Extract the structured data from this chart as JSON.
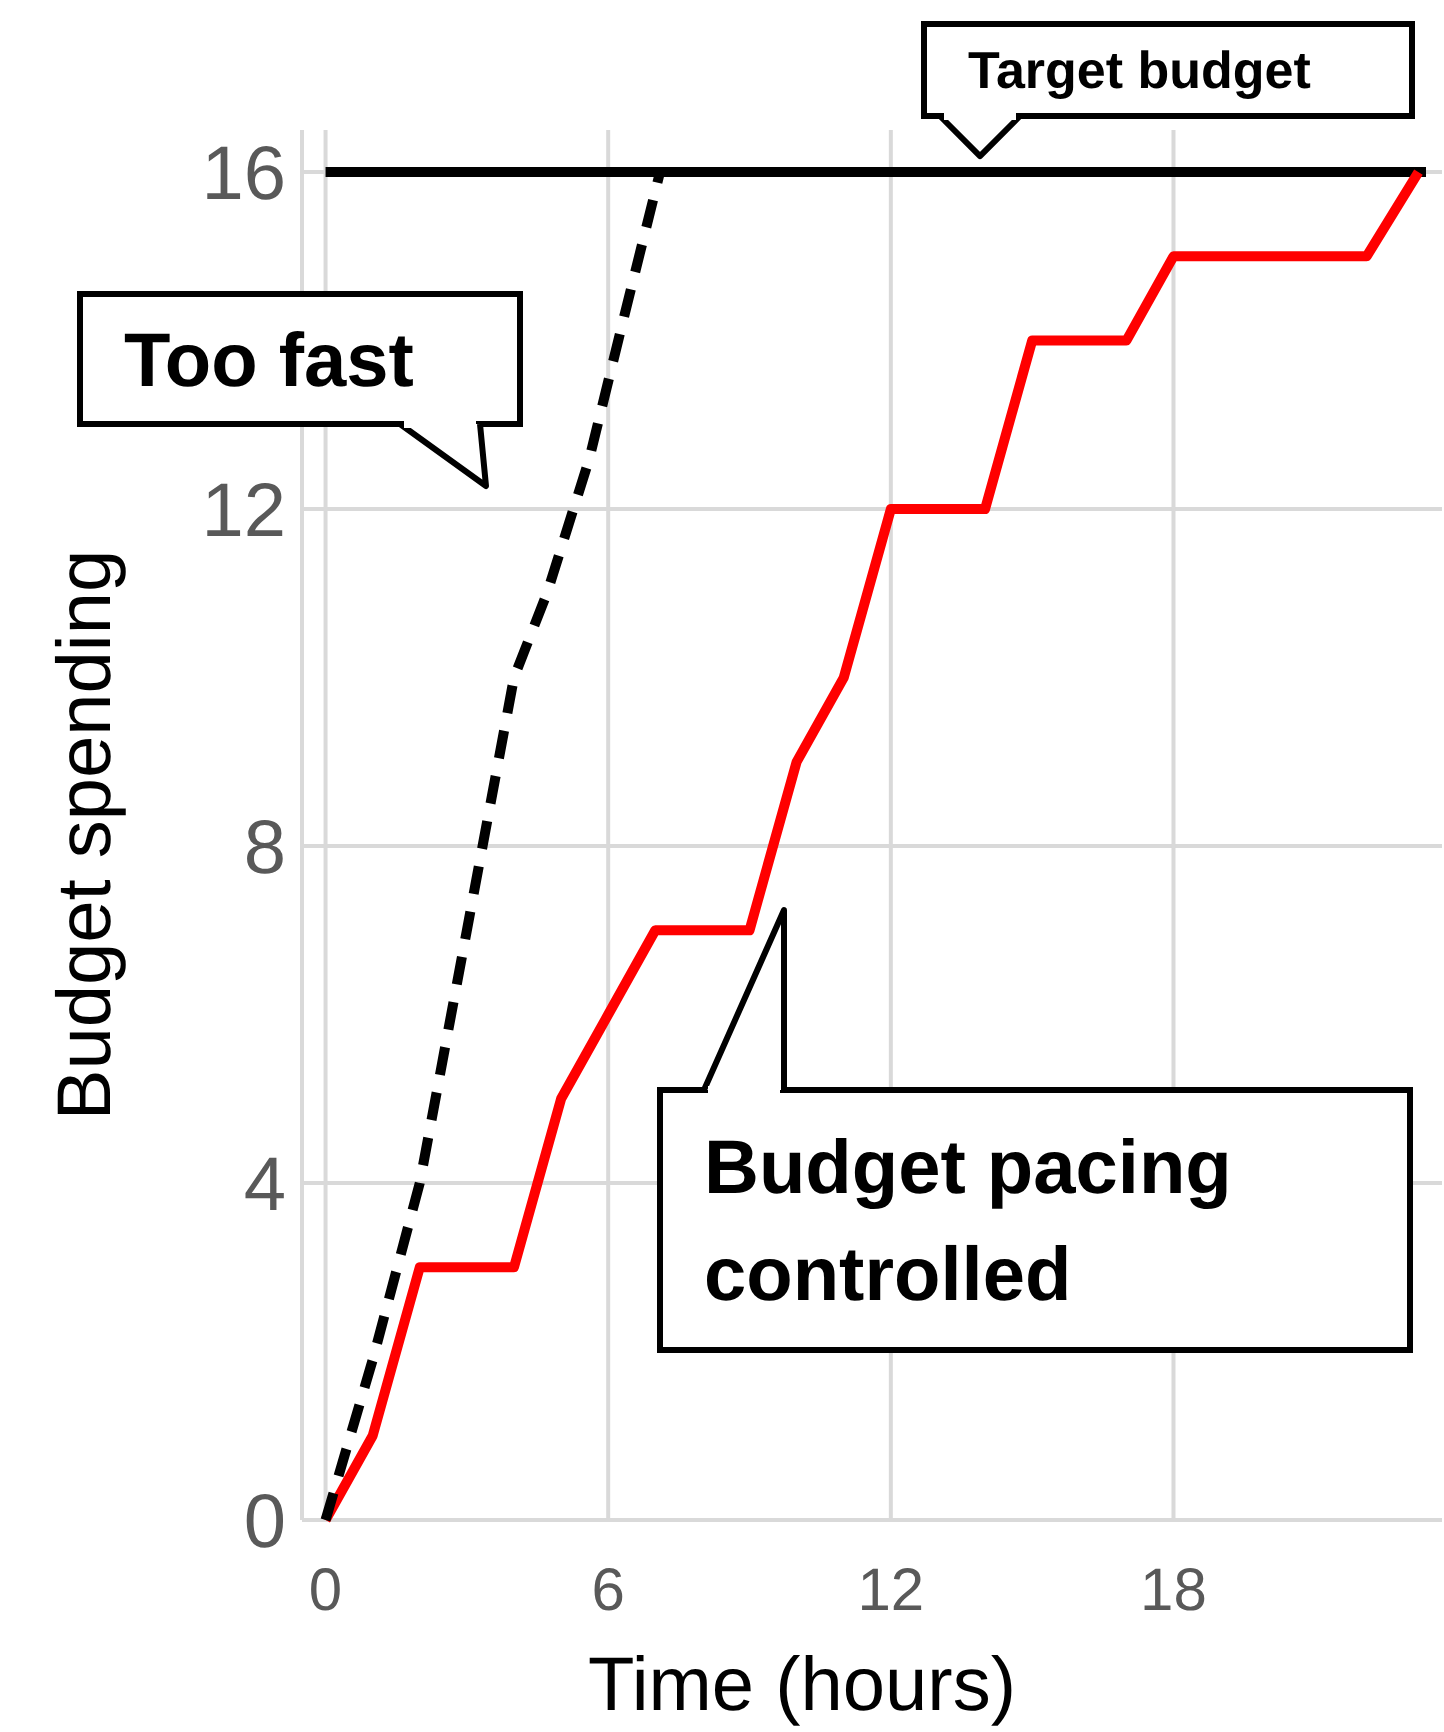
{
  "chart_data": {
    "type": "line",
    "xlabel": "Time (hours)",
    "ylabel": "Budget spending",
    "xlim": [
      -0.5,
      23.7
    ],
    "ylim": [
      0,
      16.5
    ],
    "xticks": [
      0,
      6,
      12,
      18
    ],
    "yticks": [
      0,
      4,
      8,
      12,
      16
    ],
    "grid": true,
    "series": [
      {
        "color": "#ff0000",
        "line_style": "solid",
        "x": [
          0,
          1,
          2,
          4,
          5,
          6,
          7,
          9,
          10,
          11,
          12,
          14,
          15,
          17,
          18,
          22.1,
          23.2
        ],
        "values": [
          0,
          1,
          3,
          3,
          5,
          6,
          7,
          7,
          9,
          10,
          12,
          12,
          14,
          14,
          15,
          15,
          16
        ]
      },
      {
        "color": "#000000",
        "line_style": "dashed",
        "x": [
          0,
          1,
          2,
          3,
          4,
          4.7,
          5.6,
          6.3,
          7.1
        ],
        "values": [
          0,
          1.9,
          4,
          7,
          10,
          11,
          12.6,
          14.2,
          16
        ]
      }
    ],
    "ref_lines": [
      {
        "axis": "y",
        "value": 16,
        "label": "Target budget",
        "color": "#000000"
      }
    ],
    "annotations": [
      "Too fast",
      "Budget pacing\ncontrolled"
    ]
  }
}
